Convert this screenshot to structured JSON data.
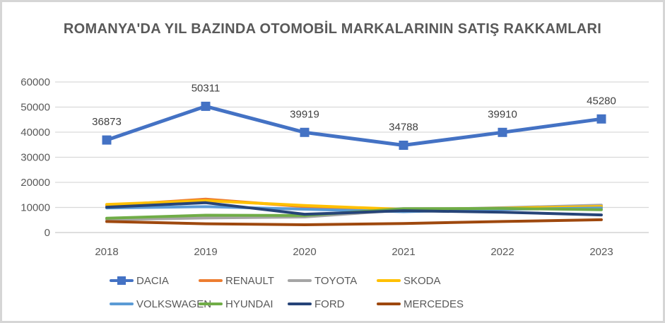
{
  "title": "ROMANYA'DA YIL BAZINDA OTOMOBİL MARKALARININ SATIŞ RAKKAMLARI",
  "colors": {
    "text": "#595959",
    "data_label": "#404040",
    "grid": "#D9D9D9",
    "axis_line": "#C9C9C9",
    "background": "#FFFFFF",
    "border": "#D6D6D6"
  },
  "chart_data": {
    "type": "line",
    "x": [
      2018,
      2019,
      2020,
      2021,
      2022,
      2023
    ],
    "series": [
      {
        "name": "DACIA",
        "color": "#4472C4",
        "marker": "square",
        "labeled": true,
        "values": [
          36873,
          50311,
          39919,
          34788,
          39910,
          45280
        ]
      },
      {
        "name": "RENAULT",
        "color": "#ED7D31",
        "values": [
          10800,
          13300,
          10300,
          9000,
          9500,
          10200
        ]
      },
      {
        "name": "TOYOTA",
        "color": "#A5A5A5",
        "values": [
          5100,
          5800,
          6200,
          9000,
          9900,
          10900
        ]
      },
      {
        "name": "SKODA",
        "color": "#FFC000",
        "values": [
          11200,
          12700,
          10800,
          9200,
          9700,
          10400
        ]
      },
      {
        "name": "VOLKSWAGEN",
        "color": "#5B9BD5",
        "values": [
          9800,
          10300,
          9300,
          8300,
          9200,
          9800
        ]
      },
      {
        "name": "HYUNDAI",
        "color": "#70AD47",
        "values": [
          5700,
          6900,
          6800,
          9500,
          9600,
          9100
        ]
      },
      {
        "name": "FORD",
        "color": "#264478",
        "values": [
          10100,
          11900,
          7300,
          8700,
          8100,
          7000
        ]
      },
      {
        "name": "MERCEDES",
        "color": "#9E480E",
        "values": [
          4400,
          3500,
          3100,
          3600,
          4400,
          5100
        ]
      }
    ],
    "y_ticks": [
      0,
      10000,
      20000,
      30000,
      40000,
      50000,
      60000
    ],
    "ylim": [
      0,
      60000
    ],
    "grid": true,
    "legend_position": "bottom",
    "legend_rows": [
      [
        "DACIA",
        "RENAULT",
        "TOYOTA",
        "SKODA"
      ],
      [
        "VOLKSWAGEN",
        "HYUNDAI",
        "FORD",
        "MERCEDES"
      ]
    ]
  }
}
